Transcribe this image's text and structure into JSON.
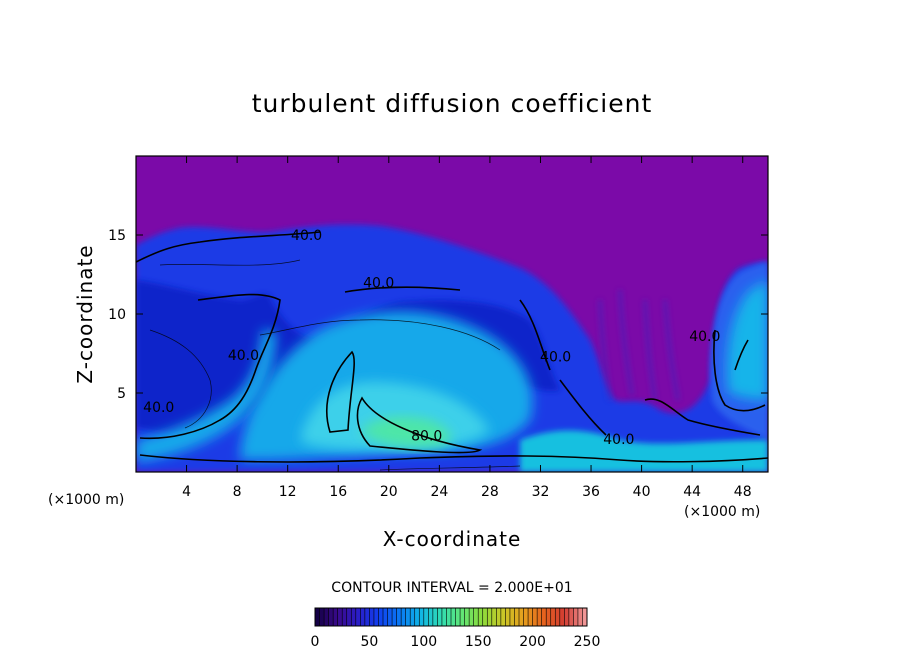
{
  "chart_data": {
    "type": "heatmap",
    "title": "turbulent diffusion coefficient",
    "xlabel": "X-coordinate",
    "ylabel": "Z-coordinate",
    "x_unit_left": "(×1000 m)",
    "x_unit_right": "(×1000 m)",
    "xlim": [
      0,
      50
    ],
    "ylim": [
      0,
      20
    ],
    "x_ticks": [
      4,
      8,
      12,
      16,
      20,
      24,
      28,
      32,
      36,
      40,
      44,
      48
    ],
    "y_ticks": [
      5,
      10,
      15
    ],
    "contour_interval_text": "CONTOUR INTERVAL = 2.000E+01",
    "contour_labels": [
      {
        "text": "40.0",
        "x": 13.5,
        "z": 15.0
      },
      {
        "text": "40.0",
        "x": 19.2,
        "z": 12.0
      },
      {
        "text": "40.0",
        "x": 8.5,
        "z": 7.4
      },
      {
        "text": "40.0",
        "x": 1.8,
        "z": 4.1
      },
      {
        "text": "80.0",
        "x": 23.0,
        "z": 2.3
      },
      {
        "text": "40.0",
        "x": 33.2,
        "z": 7.3
      },
      {
        "text": "40.0",
        "x": 38.2,
        "z": 2.1
      },
      {
        "text": "40.0",
        "x": 45.0,
        "z": 8.6
      }
    ],
    "colorbar": {
      "min": 0,
      "max": 250,
      "ticks": [
        "0",
        "50",
        "100",
        "150",
        "200",
        "250"
      ],
      "colors": [
        "#140046",
        "#3a0a8c",
        "#2a1ec8",
        "#1040f0",
        "#0a78f4",
        "#10b4e6",
        "#30dcb4",
        "#60e678",
        "#8cdc3c",
        "#c8c828",
        "#e6a01e",
        "#e6641e",
        "#d23c32",
        "#f09696"
      ]
    },
    "colors": {
      "background_field": "#7b0aa8",
      "low": "#1428e0",
      "mid": "#0a78f4",
      "high": "#3cd2e6",
      "peak": "#50e6a0"
    }
  }
}
